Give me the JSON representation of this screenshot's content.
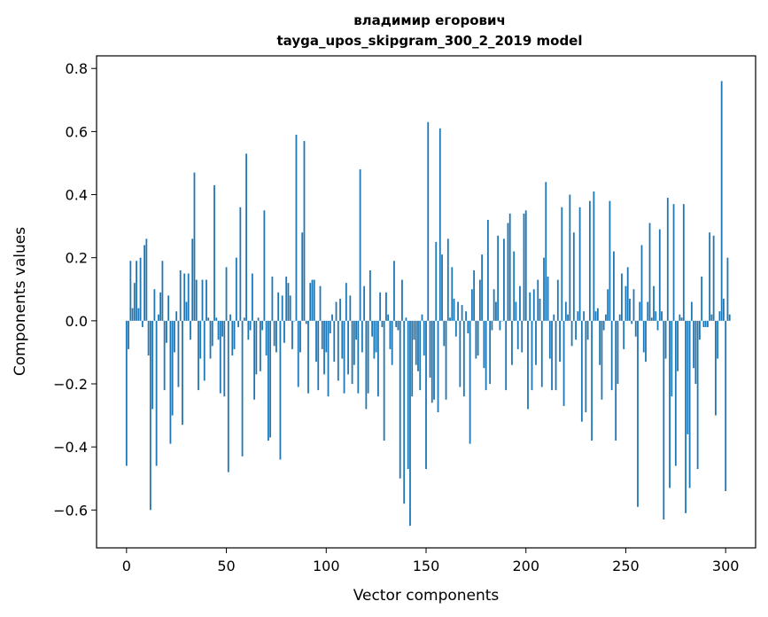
{
  "chart_data": {
    "type": "bar",
    "title_line1": "владимир егорович",
    "title_line2": "tayga_upos_skipgram_300_2_2019 model",
    "xlabel": "Vector components",
    "ylabel": "Components values",
    "xlim": [
      -15,
      315
    ],
    "ylim": [
      -0.72,
      0.84
    ],
    "xticks": [
      0,
      50,
      100,
      150,
      200,
      250,
      300
    ],
    "xtick_labels": [
      "0",
      "50",
      "100",
      "150",
      "200",
      "250",
      "300"
    ],
    "yticks": [
      -0.6,
      -0.4,
      -0.2,
      0.0,
      0.2,
      0.4,
      0.6,
      0.8
    ],
    "ytick_labels": [
      "−0.6",
      "−0.4",
      "−0.2",
      "0.0",
      "0.2",
      "0.4",
      "0.6",
      "0.8"
    ],
    "bar_color": "#1f77b4",
    "grid": false,
    "values": [
      -0.46,
      -0.09,
      0.19,
      0.04,
      0.12,
      0.19,
      0.04,
      0.2,
      -0.02,
      0.24,
      0.26,
      -0.11,
      -0.6,
      -0.28,
      0.1,
      -0.46,
      0.02,
      0.09,
      0.19,
      -0.22,
      -0.07,
      0.08,
      -0.39,
      -0.3,
      -0.1,
      0.03,
      -0.21,
      0.16,
      -0.33,
      0.15,
      0.06,
      0.15,
      -0.06,
      0.26,
      0.47,
      0.13,
      -0.22,
      -0.12,
      0.13,
      -0.19,
      0.13,
      0.01,
      -0.12,
      -0.08,
      0.43,
      0.01,
      -0.06,
      -0.23,
      -0.05,
      -0.24,
      0.17,
      -0.48,
      0.02,
      -0.11,
      -0.09,
      0.2,
      -0.02,
      0.36,
      -0.43,
      0.01,
      0.53,
      -0.06,
      -0.03,
      0.15,
      -0.25,
      -0.17,
      0.01,
      -0.16,
      -0.03,
      0.35,
      -0.11,
      -0.38,
      -0.37,
      0.14,
      -0.08,
      -0.1,
      0.09,
      -0.44,
      0.08,
      -0.07,
      0.14,
      0.12,
      0.08,
      -0.09,
      0.0,
      0.59,
      -0.21,
      -0.1,
      0.28,
      0.57,
      -0.01,
      -0.23,
      0.12,
      0.13,
      0.13,
      -0.13,
      -0.22,
      0.11,
      -0.09,
      -0.17,
      -0.1,
      -0.24,
      -0.04,
      0.02,
      -0.13,
      0.06,
      -0.19,
      0.07,
      -0.12,
      -0.23,
      0.12,
      -0.17,
      0.08,
      -0.2,
      -0.14,
      -0.06,
      -0.23,
      0.48,
      -0.1,
      0.11,
      -0.28,
      -0.23,
      0.16,
      -0.05,
      -0.12,
      -0.1,
      -0.24,
      0.09,
      -0.02,
      -0.38,
      0.09,
      0.02,
      -0.09,
      -0.14,
      0.19,
      -0.02,
      -0.03,
      -0.5,
      0.13,
      -0.58,
      0.01,
      -0.47,
      -0.65,
      -0.24,
      -0.06,
      -0.14,
      -0.16,
      -0.22,
      0.02,
      -0.11,
      -0.47,
      0.63,
      -0.18,
      -0.26,
      -0.25,
      0.25,
      -0.29,
      0.61,
      0.21,
      -0.08,
      -0.25,
      0.26,
      0.01,
      0.17,
      0.07,
      -0.05,
      0.06,
      -0.21,
      0.05,
      -0.24,
      0.03,
      -0.04,
      -0.39,
      0.1,
      0.16,
      -0.12,
      -0.11,
      0.13,
      0.21,
      -0.15,
      -0.22,
      0.32,
      -0.2,
      -0.03,
      0.1,
      0.06,
      0.27,
      -0.03,
      0.0,
      0.26,
      -0.22,
      0.31,
      0.34,
      -0.14,
      0.22,
      0.06,
      -0.09,
      0.11,
      -0.1,
      0.34,
      0.35,
      -0.28,
      0.09,
      -0.22,
      0.1,
      -0.14,
      0.13,
      0.07,
      -0.21,
      0.2,
      0.44,
      0.14,
      -0.12,
      -0.22,
      0.02,
      -0.22,
      0.13,
      -0.13,
      0.36,
      -0.27,
      0.06,
      0.02,
      0.4,
      -0.08,
      0.28,
      -0.06,
      0.03,
      0.36,
      -0.32,
      0.03,
      -0.29,
      -0.06,
      0.38,
      -0.38,
      0.41,
      0.03,
      0.04,
      -0.14,
      -0.25,
      -0.03,
      0.02,
      0.1,
      0.38,
      -0.22,
      0.22,
      -0.38,
      -0.2,
      0.02,
      0.15,
      -0.09,
      0.11,
      0.17,
      0.07,
      -0.01,
      0.1,
      -0.05,
      -0.59,
      0.06,
      0.24,
      -0.1,
      -0.13,
      0.06,
      0.31,
      0.01,
      0.11,
      0.03,
      -0.03,
      0.29,
      0.03,
      -0.63,
      -0.12,
      0.39,
      -0.53,
      -0.24,
      0.37,
      -0.46,
      -0.16,
      0.02,
      0.01,
      0.37,
      -0.61,
      -0.36,
      -0.53,
      0.06,
      -0.15,
      -0.2,
      -0.47,
      -0.06,
      0.14,
      -0.02,
      -0.02,
      -0.02,
      0.28,
      0.02,
      0.27,
      -0.3,
      -0.12,
      0.03,
      0.76,
      0.07,
      -0.54,
      0.2,
      0.02
    ]
  }
}
